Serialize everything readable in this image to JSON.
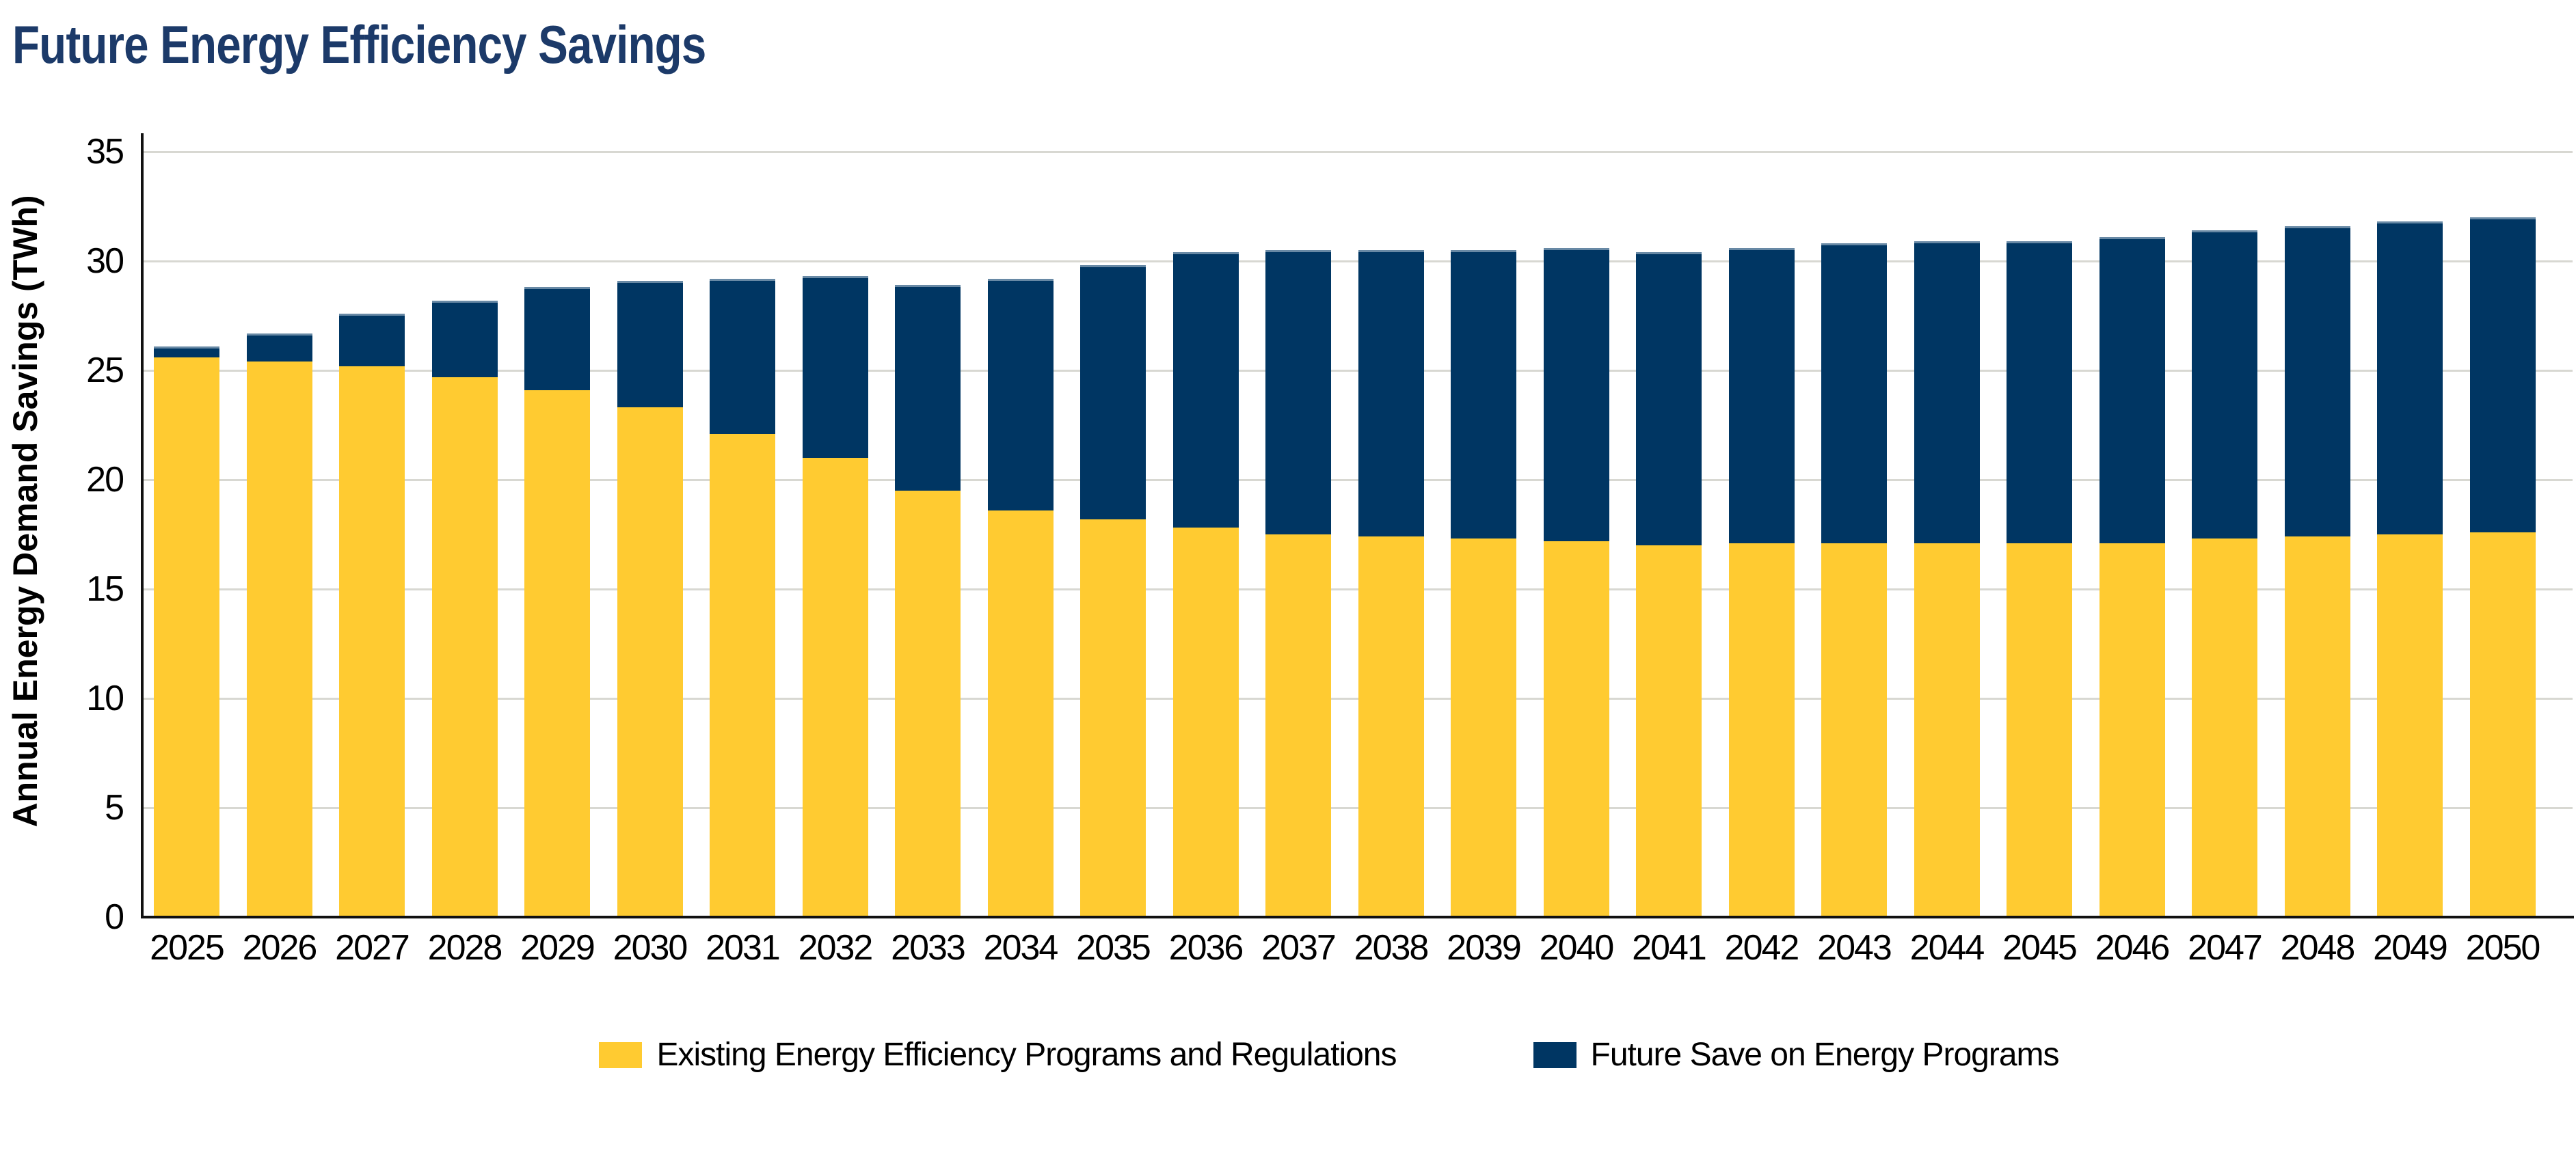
{
  "page": {
    "title": "Future Energy Efficiency Savings"
  },
  "colors": {
    "title": "#1C3A69",
    "existing_yellow": "#FFCB31",
    "future_navy": "#003663",
    "gridline": "#D8D8D2",
    "axis": "#111111",
    "text": "#000000"
  },
  "chart_data": {
    "type": "bar",
    "stacked": true,
    "title": "Future Energy Efficiency Savings",
    "xlabel": "",
    "ylabel": "Annual Energy Demand Savings (TWh)",
    "ylim": [
      0,
      35
    ],
    "yticks": [
      0,
      5,
      10,
      15,
      20,
      25,
      30,
      35
    ],
    "grid": "horizontal",
    "legend_position": "bottom",
    "categories": [
      "2025",
      "2026",
      "2027",
      "2028",
      "2029",
      "2030",
      "2031",
      "2032",
      "2033",
      "2034",
      "2035",
      "2036",
      "2037",
      "2038",
      "2039",
      "2040",
      "2041",
      "2042",
      "2043",
      "2044",
      "2045",
      "2046",
      "2047",
      "2048",
      "2049",
      "2050"
    ],
    "series": [
      {
        "name": "Existing Energy Efficiency Programs and Regulations",
        "color": "#FFCB31",
        "values": [
          25.6,
          25.4,
          25.2,
          24.7,
          24.1,
          23.3,
          22.1,
          21.0,
          19.5,
          18.6,
          18.2,
          17.8,
          17.5,
          17.4,
          17.3,
          17.2,
          17.0,
          17.1,
          17.1,
          17.1,
          17.1,
          17.1,
          17.3,
          17.4,
          17.5,
          17.6
        ]
      },
      {
        "name": "Future Save on Energy Programs",
        "color": "#003663",
        "values": [
          0.5,
          1.3,
          2.4,
          3.5,
          4.7,
          5.8,
          7.1,
          8.3,
          9.4,
          10.6,
          11.6,
          12.6,
          13.0,
          13.1,
          13.2,
          13.4,
          13.4,
          13.5,
          13.7,
          13.8,
          13.8,
          14.0,
          14.1,
          14.2,
          14.3,
          14.4
        ]
      }
    ],
    "totals": [
      26.1,
      26.7,
      27.6,
      28.2,
      28.8,
      29.1,
      29.2,
      29.3,
      28.9,
      29.2,
      29.8,
      30.4,
      30.5,
      30.5,
      30.5,
      30.6,
      30.4,
      30.6,
      30.8,
      30.9,
      30.9,
      31.1,
      31.4,
      31.6,
      31.8,
      32.0
    ]
  }
}
